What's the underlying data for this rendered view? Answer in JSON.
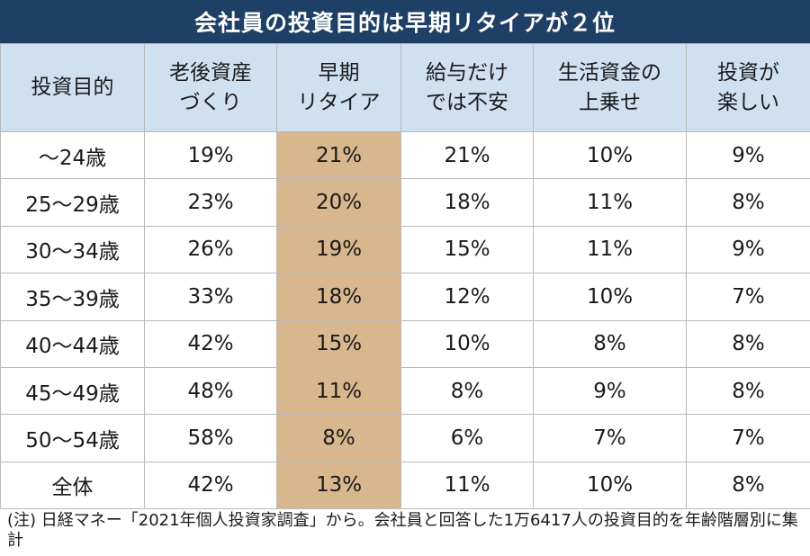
{
  "title": "会社員の投資目的は早期リタイアが２位",
  "chart_data": {
    "type": "table",
    "title": "会社員の投資目的は早期リタイアが２位",
    "columns": [
      "投資目的",
      "老後資産\nづくり",
      "早期\nリタイア",
      "給与だけ\nでは不安",
      "生活資金の\n上乗せ",
      "投資が\n楽しい"
    ],
    "highlight_column": 2,
    "highlight_color": "#d8b68e",
    "header_color": "#cfe1f0",
    "title_color": "#1e3f66",
    "rows": [
      [
        "～24歳",
        "19%",
        "21%",
        "21%",
        "10%",
        "9%"
      ],
      [
        "25～29歳",
        "23%",
        "20%",
        "18%",
        "11%",
        "8%"
      ],
      [
        "30～34歳",
        "26%",
        "19%",
        "15%",
        "11%",
        "9%"
      ],
      [
        "35～39歳",
        "33%",
        "18%",
        "12%",
        "10%",
        "7%"
      ],
      [
        "40～44歳",
        "42%",
        "15%",
        "10%",
        "8%",
        "8%"
      ],
      [
        "45～49歳",
        "48%",
        "11%",
        "8%",
        "9%",
        "8%"
      ],
      [
        "50～54歳",
        "58%",
        "8%",
        "6%",
        "7%",
        "7%"
      ],
      [
        "全体",
        "42%",
        "13%",
        "11%",
        "10%",
        "8%"
      ]
    ]
  },
  "note": "(注) 日経マネー「2021年個人投資家調査」から。会社員と回答した1万6417人の投資目的を年齢階層別に集計"
}
